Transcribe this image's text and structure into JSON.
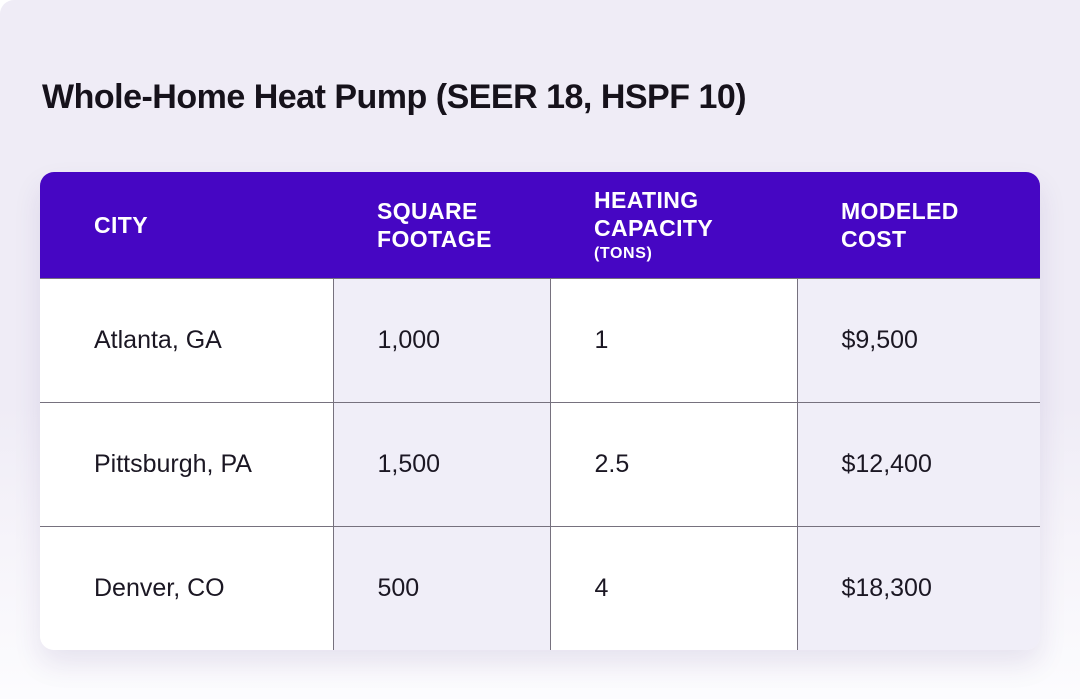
{
  "page": {
    "title": "Whole-Home Heat Pump (SEER 18, HSPF 10)"
  },
  "colors": {
    "header_bg": "#4606c3",
    "header_text": "#ffffff",
    "page_bg": "#efecf6",
    "alt_cell_bg": "#f0eef8",
    "grid_border": "#76717e",
    "body_text": "#1b1723"
  },
  "chart_data": {
    "type": "table",
    "title": "Whole-Home Heat Pump (SEER 18, HSPF 10)",
    "columns": [
      {
        "label": "CITY",
        "sublabel": ""
      },
      {
        "label": "SQUARE FOOTAGE",
        "sublabel": ""
      },
      {
        "label": "HEATING CAPACITY",
        "sublabel": "(TONS)"
      },
      {
        "label": "MODELED COST",
        "sublabel": ""
      }
    ],
    "rows": [
      [
        "Atlanta, GA",
        "1,000",
        "1",
        "$9,500"
      ],
      [
        "Pittsburgh, PA",
        "1,500",
        "2.5",
        "$12,400"
      ],
      [
        "Denver, CO",
        "500",
        "4",
        "$18,300"
      ]
    ]
  }
}
